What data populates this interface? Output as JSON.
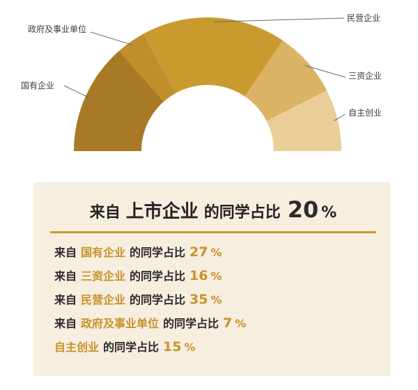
{
  "chart_data": {
    "type": "pie",
    "variant": "half-donut",
    "categories": [
      "国有企业",
      "政府及事业单位",
      "民营企业",
      "三资企业",
      "自主创业"
    ],
    "values": [
      27,
      7,
      35,
      16,
      15
    ],
    "colors": [
      "#a87a25",
      "#bf8f2b",
      "#c99a2e",
      "#dcb264",
      "#e9cf97"
    ],
    "unit": "%"
  },
  "summary": {
    "headline": {
      "prefix": "来自",
      "key": "上市企业",
      "suffix": "的同学占比",
      "value": "20",
      "unit": "%"
    },
    "rows": [
      {
        "prefix": "来自",
        "key": "国有企业",
        "suffix": "的同学占比",
        "value": "27",
        "unit": "%"
      },
      {
        "prefix": "来自",
        "key": "三资企业",
        "suffix": "的同学占比",
        "value": "16",
        "unit": "%"
      },
      {
        "prefix": "来自",
        "key": "民营企业",
        "suffix": "的同学占比",
        "value": "35",
        "unit": "%"
      },
      {
        "prefix": "来自",
        "key": "政府及事业单位",
        "suffix": "的同学占比",
        "value": "7",
        "unit": "%"
      },
      {
        "prefix": "",
        "key": "自主创业",
        "suffix": "的同学占比",
        "value": "15",
        "unit": "%"
      }
    ]
  }
}
